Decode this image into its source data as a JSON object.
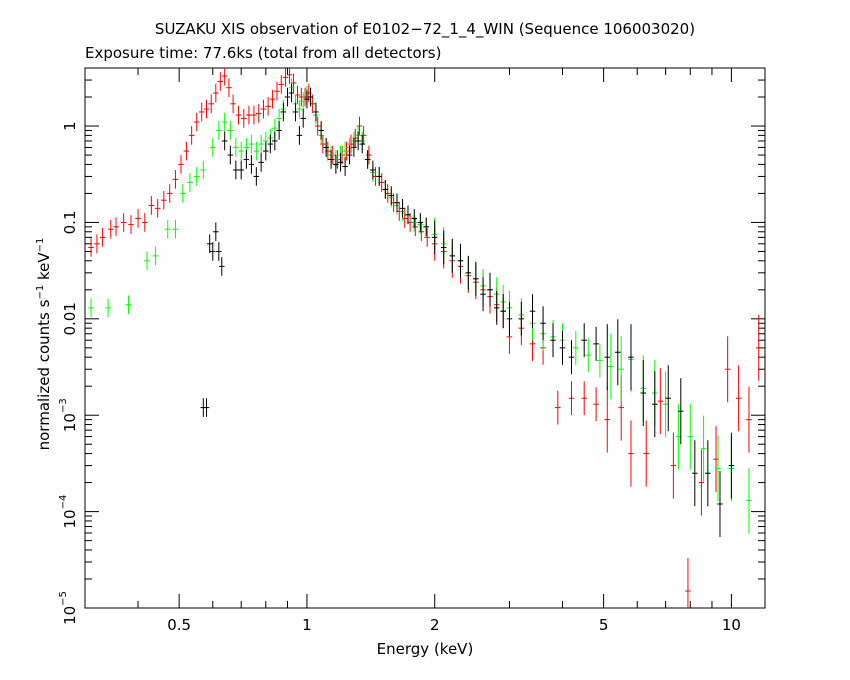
{
  "chart_data": {
    "type": "scatter",
    "title": "SUZAKU XIS observation of E0102−72_1_4_WIN (Sequence 106003020)",
    "subtitle": "Exposure time: 77.6ks (total from all detectors)",
    "xlabel": "Energy (keV)",
    "ylabel_parts": [
      "normalized counts s",
      "−1",
      " keV",
      "−1"
    ],
    "x_scale": "log",
    "y_scale": "log",
    "xlim": [
      0.3,
      12
    ],
    "ylim": [
      1e-05,
      4
    ],
    "grid": false,
    "x_ticks": [
      {
        "value": 0.5,
        "label": "0.5"
      },
      {
        "value": 1,
        "label": "1"
      },
      {
        "value": 2,
        "label": "2"
      },
      {
        "value": 5,
        "label": "5"
      },
      {
        "value": 10,
        "label": "10"
      }
    ],
    "y_ticks": [
      {
        "value": 1e-05,
        "label": "10",
        "exp": "−5"
      },
      {
        "value": 0.0001,
        "label": "10",
        "exp": "−4"
      },
      {
        "value": 0.001,
        "label": "10",
        "exp": "−3"
      },
      {
        "value": 0.01,
        "label": "0.01",
        "exp": ""
      },
      {
        "value": 0.1,
        "label": "0.1",
        "exp": ""
      },
      {
        "value": 1,
        "label": "1",
        "exp": ""
      }
    ],
    "series": [
      {
        "color": "#ff0000",
        "points": [
          [
            0.31,
            0.055
          ],
          [
            0.32,
            0.06
          ],
          [
            0.33,
            0.07
          ],
          [
            0.345,
            0.085
          ],
          [
            0.355,
            0.09
          ],
          [
            0.37,
            0.1
          ],
          [
            0.385,
            0.095
          ],
          [
            0.4,
            0.11
          ],
          [
            0.415,
            0.1
          ],
          [
            0.43,
            0.15
          ],
          [
            0.445,
            0.14
          ],
          [
            0.46,
            0.17
          ],
          [
            0.475,
            0.2
          ],
          [
            0.49,
            0.28
          ],
          [
            0.505,
            0.4
          ],
          [
            0.52,
            0.55
          ],
          [
            0.535,
            0.8
          ],
          [
            0.55,
            1.1
          ],
          [
            0.565,
            1.4
          ],
          [
            0.58,
            1.5
          ],
          [
            0.595,
            1.7
          ],
          [
            0.61,
            2.2
          ],
          [
            0.625,
            2.9
          ],
          [
            0.64,
            3.3
          ],
          [
            0.655,
            2.5
          ],
          [
            0.67,
            1.7
          ],
          [
            0.69,
            1.3
          ],
          [
            0.71,
            1.2
          ],
          [
            0.73,
            1.3
          ],
          [
            0.75,
            1.3
          ],
          [
            0.77,
            1.35
          ],
          [
            0.79,
            1.5
          ],
          [
            0.81,
            1.6
          ],
          [
            0.83,
            1.9
          ],
          [
            0.85,
            2.3
          ],
          [
            0.87,
            2.7
          ],
          [
            0.89,
            3.2
          ],
          [
            0.91,
            3.4
          ],
          [
            0.93,
            2.8
          ],
          [
            0.95,
            2.1
          ],
          [
            0.97,
            2.0
          ],
          [
            0.99,
            2.0
          ],
          [
            1.01,
            2.2
          ],
          [
            1.03,
            1.7
          ],
          [
            1.06,
            1.0
          ],
          [
            1.09,
            0.65
          ],
          [
            1.12,
            0.55
          ],
          [
            1.15,
            0.5
          ],
          [
            1.18,
            0.45
          ],
          [
            1.21,
            0.5
          ],
          [
            1.24,
            0.55
          ],
          [
            1.27,
            0.65
          ],
          [
            1.3,
            0.75
          ],
          [
            1.33,
            1.0
          ],
          [
            1.36,
            0.8
          ],
          [
            1.4,
            0.5
          ],
          [
            1.45,
            0.3
          ],
          [
            1.5,
            0.26
          ],
          [
            1.55,
            0.2
          ],
          [
            1.6,
            0.16
          ],
          [
            1.65,
            0.13
          ],
          [
            1.7,
            0.11
          ],
          [
            1.75,
            0.1
          ],
          [
            1.8,
            0.09
          ],
          [
            1.86,
            0.08
          ],
          [
            1.92,
            0.07
          ],
          [
            2.0,
            0.06
          ],
          [
            2.1,
            0.05
          ],
          [
            2.2,
            0.04
          ],
          [
            2.3,
            0.035
          ],
          [
            2.4,
            0.028
          ],
          [
            2.5,
            0.024
          ],
          [
            2.6,
            0.02
          ],
          [
            2.7,
            0.017
          ],
          [
            2.8,
            0.014
          ],
          [
            2.9,
            0.012
          ],
          [
            3.0,
            0.0065
          ],
          [
            3.2,
            0.008
          ],
          [
            3.4,
            0.0055
          ],
          [
            3.6,
            0.005
          ],
          [
            3.9,
            0.0012
          ],
          [
            4.2,
            0.0015
          ],
          [
            4.5,
            0.0015
          ],
          [
            4.8,
            0.0013
          ],
          [
            5.1,
            0.0009
          ],
          [
            5.5,
            0.0012
          ],
          [
            5.8,
            0.0004
          ],
          [
            6.3,
            0.0004
          ],
          [
            6.8,
            0.0014
          ],
          [
            7.3,
            0.0003
          ],
          [
            7.9,
            1.5e-05
          ],
          [
            8.5,
            0.0002
          ],
          [
            9.2,
            0.00035
          ],
          [
            9.8,
            0.003
          ],
          [
            10.4,
            0.0015
          ],
          [
            11.0,
            0.0009
          ],
          [
            11.6,
            0.005
          ]
        ]
      },
      {
        "color": "#00ff00",
        "points": [
          [
            0.31,
            0.013
          ],
          [
            0.34,
            0.013
          ],
          [
            0.38,
            0.014
          ],
          [
            0.42,
            0.04
          ],
          [
            0.44,
            0.045
          ],
          [
            0.47,
            0.085
          ],
          [
            0.49,
            0.085
          ],
          [
            0.51,
            0.2
          ],
          [
            0.53,
            0.26
          ],
          [
            0.55,
            0.3
          ],
          [
            0.57,
            0.35
          ],
          [
            0.6,
            0.6
          ],
          [
            0.62,
            0.9
          ],
          [
            0.64,
            1.1
          ],
          [
            0.66,
            0.9
          ],
          [
            0.68,
            0.6
          ],
          [
            0.7,
            0.55
          ],
          [
            0.72,
            0.6
          ],
          [
            0.74,
            0.65
          ],
          [
            0.76,
            0.55
          ],
          [
            0.78,
            0.65
          ],
          [
            0.8,
            0.7
          ],
          [
            0.82,
            0.75
          ],
          [
            0.84,
            0.95
          ],
          [
            0.86,
            1.2
          ],
          [
            0.88,
            1.5
          ],
          [
            0.9,
            2.0
          ],
          [
            0.92,
            2.5
          ],
          [
            0.94,
            1.7
          ],
          [
            0.96,
            1.5
          ],
          [
            0.98,
            1.8
          ],
          [
            1.0,
            2.1
          ],
          [
            1.02,
            2.0
          ],
          [
            1.05,
            1.3
          ],
          [
            1.08,
            0.8
          ],
          [
            1.11,
            0.6
          ],
          [
            1.14,
            0.5
          ],
          [
            1.17,
            0.45
          ],
          [
            1.2,
            0.5
          ],
          [
            1.23,
            0.55
          ],
          [
            1.26,
            0.6
          ],
          [
            1.29,
            0.7
          ],
          [
            1.32,
            0.8
          ],
          [
            1.35,
            0.7
          ],
          [
            1.39,
            0.45
          ],
          [
            1.43,
            0.33
          ],
          [
            1.48,
            0.3
          ],
          [
            1.53,
            0.22
          ],
          [
            1.58,
            0.18
          ],
          [
            1.63,
            0.15
          ],
          [
            1.68,
            0.13
          ],
          [
            1.73,
            0.12
          ],
          [
            1.79,
            0.1
          ],
          [
            1.85,
            0.095
          ],
          [
            1.91,
            0.09
          ],
          [
            2.0,
            0.075
          ],
          [
            2.1,
            0.06
          ],
          [
            2.2,
            0.045
          ],
          [
            2.3,
            0.04
          ],
          [
            2.4,
            0.03
          ],
          [
            2.5,
            0.026
          ],
          [
            2.6,
            0.022
          ],
          [
            2.7,
            0.02
          ],
          [
            2.8,
            0.018
          ],
          [
            2.9,
            0.015
          ],
          [
            3.0,
            0.013
          ],
          [
            3.2,
            0.011
          ],
          [
            3.4,
            0.009
          ],
          [
            3.6,
            0.007
          ],
          [
            3.8,
            0.0065
          ],
          [
            4.0,
            0.006
          ],
          [
            4.3,
            0.005
          ],
          [
            4.6,
            0.0042
          ],
          [
            4.9,
            0.0037
          ],
          [
            5.2,
            0.0032
          ],
          [
            5.5,
            0.003
          ],
          [
            5.8,
            0.0038
          ],
          [
            6.2,
            0.0019
          ],
          [
            6.6,
            0.0017
          ],
          [
            7.0,
            0.0013
          ],
          [
            7.5,
            0.0006
          ],
          [
            8.0,
            0.0006
          ],
          [
            8.6,
            0.00045
          ],
          [
            9.3,
            0.00028
          ],
          [
            10.0,
            0.00028
          ],
          [
            11.0,
            0.00013
          ]
        ]
      },
      {
        "color": "#000000",
        "points": [
          [
            0.57,
            0.0012
          ],
          [
            0.58,
            0.0012
          ],
          [
            0.59,
            0.06
          ],
          [
            0.6,
            0.05
          ],
          [
            0.61,
            0.08
          ],
          [
            0.62,
            0.05
          ],
          [
            0.63,
            0.035
          ],
          [
            0.64,
            0.7
          ],
          [
            0.66,
            0.5
          ],
          [
            0.68,
            0.35
          ],
          [
            0.7,
            0.35
          ],
          [
            0.72,
            0.45
          ],
          [
            0.74,
            0.4
          ],
          [
            0.76,
            0.3
          ],
          [
            0.78,
            0.42
          ],
          [
            0.8,
            0.55
          ],
          [
            0.82,
            0.65
          ],
          [
            0.84,
            0.7
          ],
          [
            0.86,
            0.9
          ],
          [
            0.88,
            1.4
          ],
          [
            0.9,
            2.0
          ],
          [
            0.92,
            2.2
          ],
          [
            0.94,
            1.4
          ],
          [
            0.96,
            0.8
          ],
          [
            0.98,
            1.2
          ],
          [
            1.0,
            1.9
          ],
          [
            1.02,
            2.0
          ],
          [
            1.05,
            1.4
          ],
          [
            1.08,
            0.9
          ],
          [
            1.11,
            0.6
          ],
          [
            1.14,
            0.45
          ],
          [
            1.17,
            0.4
          ],
          [
            1.2,
            0.42
          ],
          [
            1.23,
            0.38
          ],
          [
            1.26,
            0.5
          ],
          [
            1.29,
            0.6
          ],
          [
            1.32,
            0.7
          ],
          [
            1.35,
            0.65
          ],
          [
            1.39,
            0.45
          ],
          [
            1.43,
            0.35
          ],
          [
            1.48,
            0.3
          ],
          [
            1.53,
            0.22
          ],
          [
            1.58,
            0.19
          ],
          [
            1.63,
            0.16
          ],
          [
            1.68,
            0.14
          ],
          [
            1.73,
            0.12
          ],
          [
            1.79,
            0.11
          ],
          [
            1.85,
            0.1
          ],
          [
            1.91,
            0.09
          ],
          [
            2.0,
            0.07
          ],
          [
            2.1,
            0.055
          ],
          [
            2.2,
            0.045
          ],
          [
            2.3,
            0.04
          ],
          [
            2.4,
            0.03
          ],
          [
            2.5,
            0.026
          ],
          [
            2.6,
            0.018
          ],
          [
            2.7,
            0.02
          ],
          [
            2.8,
            0.013
          ],
          [
            2.9,
            0.012
          ],
          [
            3.0,
            0.01
          ],
          [
            3.2,
            0.01
          ],
          [
            3.4,
            0.012
          ],
          [
            3.6,
            0.009
          ],
          [
            3.8,
            0.006
          ],
          [
            4.0,
            0.005
          ],
          [
            4.2,
            0.004
          ],
          [
            4.5,
            0.006
          ],
          [
            4.8,
            0.0055
          ],
          [
            5.1,
            0.004
          ],
          [
            5.4,
            0.0045
          ],
          [
            5.8,
            0.004
          ],
          [
            6.2,
            0.0017
          ],
          [
            6.6,
            0.0013
          ],
          [
            7.1,
            0.0015
          ],
          [
            7.6,
            0.0011
          ],
          [
            8.2,
            0.00025
          ],
          [
            8.8,
            0.00025
          ],
          [
            9.4,
            0.00012
          ],
          [
            10.0,
            0.0003
          ]
        ]
      }
    ]
  }
}
